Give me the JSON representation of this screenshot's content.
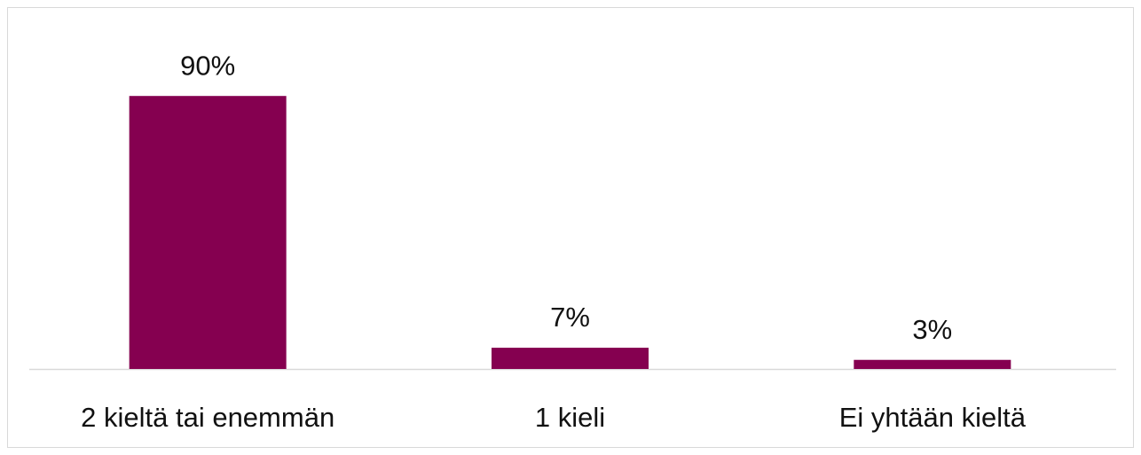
{
  "chart_data": {
    "type": "bar",
    "categories": [
      "2 kieltä tai enemmän",
      "1 kieli",
      "Ei yhtään kieltä"
    ],
    "values": [
      90,
      7,
      3
    ],
    "value_labels": [
      "90%",
      "7%",
      "3%"
    ],
    "color": "#850050",
    "ylim": [
      0,
      100
    ]
  }
}
